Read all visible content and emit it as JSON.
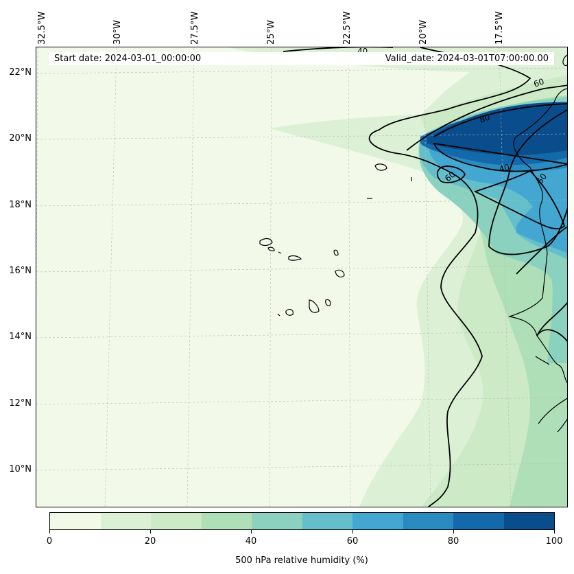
{
  "map": {
    "start_date": "Start date: 2024-03-01_00:00:00",
    "valid_date": "Valid_date: 2024-03-01T07:00:00.00",
    "lon_labels": [
      "32.5°W",
      "30°W",
      "27.5°W",
      "25°W",
      "22.5°W",
      "20°W",
      "17.5°W"
    ],
    "lat_labels": [
      "22°N",
      "20°N",
      "18°N",
      "16°N",
      "14°N",
      "12°N",
      "10°N"
    ],
    "contour_labels": [
      "40",
      "60",
      "80",
      "40",
      "60",
      "60"
    ],
    "variable": "500 hPa relative humidity (%)",
    "colorbar": {
      "tick_labels": [
        "0",
        "20",
        "40",
        "60",
        "80",
        "100"
      ],
      "levels": [
        0,
        10,
        20,
        30,
        40,
        50,
        60,
        70,
        80,
        90,
        100
      ],
      "colors": [
        "#f2f9e9",
        "#dcf0d6",
        "#cbeac5",
        "#aedfb7",
        "#8ad1bf",
        "#64bfca",
        "#44a7d1",
        "#2a8bc0",
        "#1469aa",
        "#0a4d8c"
      ]
    },
    "colors": {
      "coastline": "#000000",
      "contour": "#000000",
      "gridline": "#b8b8b8"
    }
  }
}
